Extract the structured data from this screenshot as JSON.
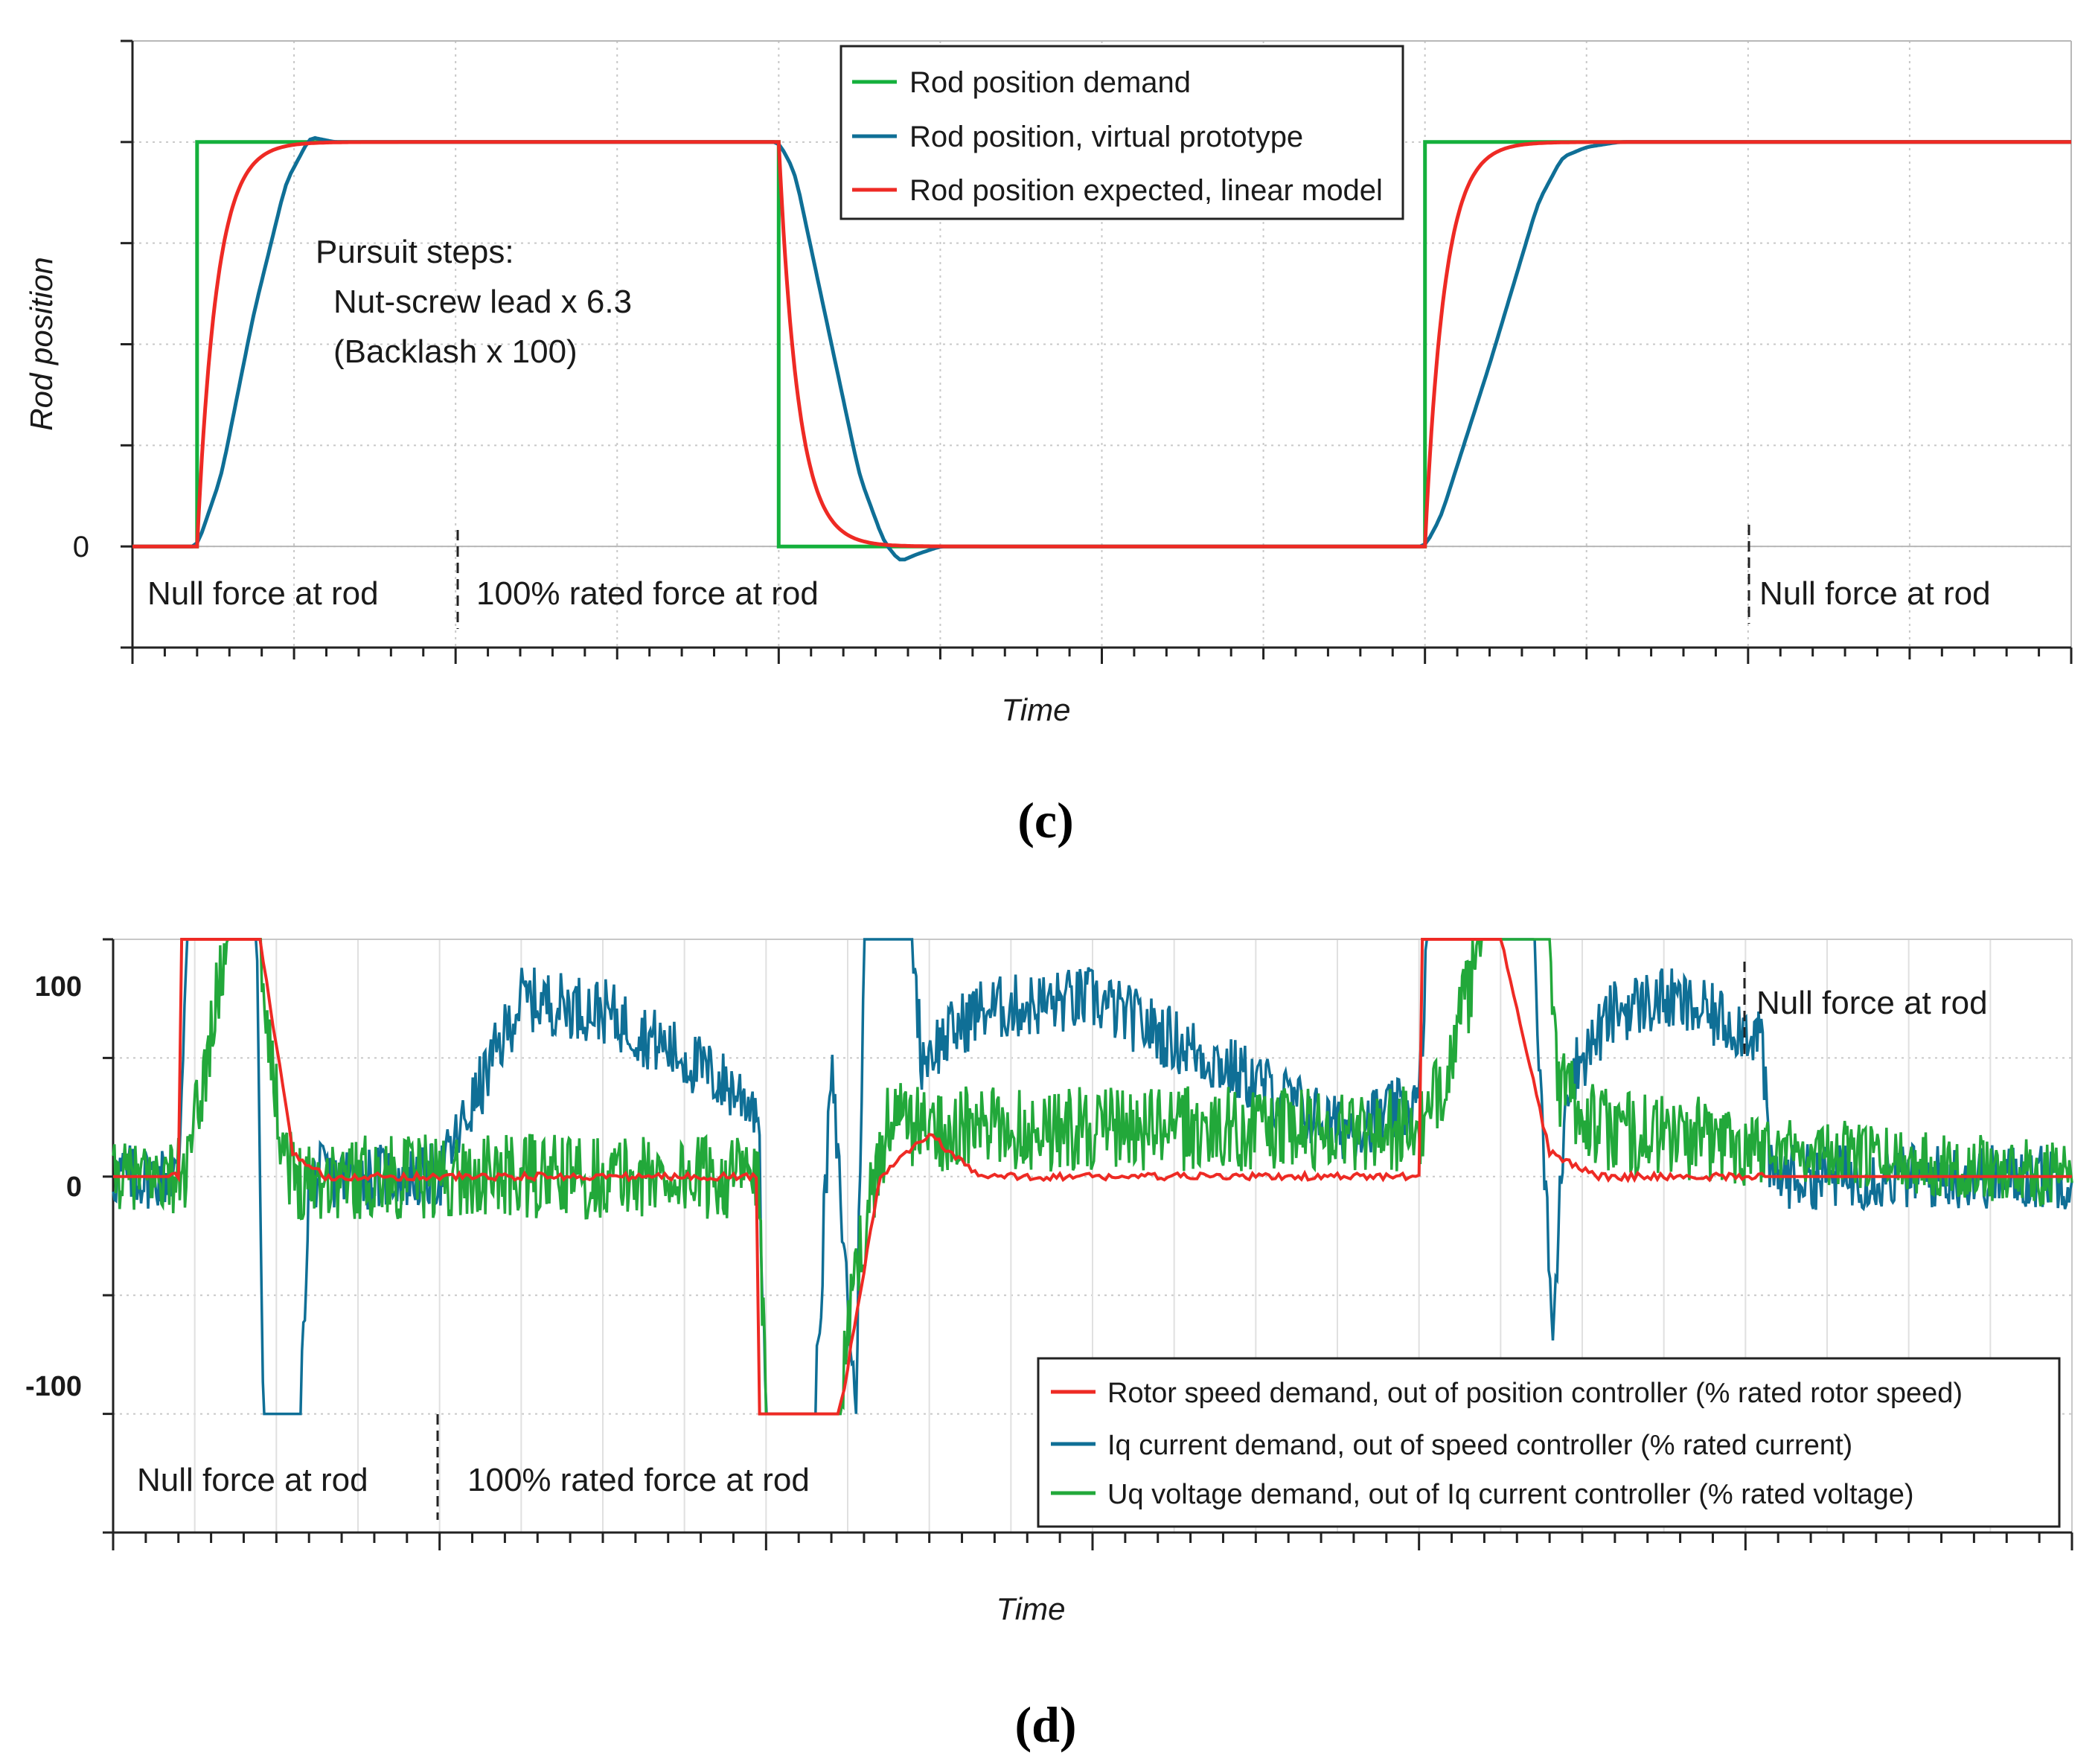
{
  "colors": {
    "demand": "#14b03c",
    "virtual": "#0f6f96",
    "linear": "#ee2a24",
    "uq": "#22a83a",
    "iq": "#0f6f96",
    "speed": "#ee2a24",
    "grid": "#c8c8c8",
    "axis": "#222222"
  },
  "chart_data": [
    {
      "type": "line",
      "caption": "(c)",
      "xlabel": "Time",
      "ylabel": "Rod position",
      "xlim": [
        0,
        12
      ],
      "ylim": [
        -1,
        5
      ],
      "y_tick_labels": [
        {
          "value": 0,
          "label": "0"
        }
      ],
      "legend": [
        "Rod position demand",
        "Rod position, virtual prototype",
        "Rod position expected, linear model"
      ],
      "legend_position": "top-center",
      "series": [
        {
          "name": "Rod position demand",
          "x": [
            0,
            0.4,
            0.4,
            4,
            4,
            8,
            8,
            12
          ],
          "y": [
            0,
            0,
            4,
            4,
            0,
            0,
            4,
            4
          ]
        },
        {
          "name": "Rod position, virtual prototype",
          "x": [
            0,
            0.4,
            0.55,
            0.75,
            0.95,
            1.1,
            1.25,
            1.45,
            4.0,
            4.1,
            4.3,
            4.5,
            4.65,
            4.75,
            4.85,
            5.0,
            5.3,
            8.0,
            8.1,
            8.4,
            8.7,
            8.85,
            9.0,
            9.2,
            9.5,
            10.0,
            12
          ],
          "y": [
            0,
            0,
            0.7,
            2.3,
            3.6,
            4.05,
            4.0,
            4.0,
            4.0,
            3.7,
            2.2,
            0.7,
            0.05,
            -0.15,
            -0.08,
            0,
            0,
            0,
            0.3,
            1.8,
            3.4,
            3.85,
            3.95,
            4.0,
            4.0,
            4.0,
            4.0
          ]
        },
        {
          "name": "Rod position expected, linear model",
          "tau": 0.12,
          "steps_at": [
            0.4,
            4.0,
            8.0
          ],
          "levels": [
            4,
            0,
            4
          ]
        }
      ],
      "annotations": [
        "Pursuit steps:",
        "Nut-screw lead x 6.3",
        "(Backlash x 100)"
      ],
      "regions": [
        "Null force at rod",
        "100% rated force at rod",
        "Null force at rod"
      ],
      "region_boundaries_x": [
        2,
        10
      ]
    },
    {
      "type": "line",
      "caption": "(d)",
      "xlabel": "Time",
      "xlim": [
        0,
        12
      ],
      "ylim": [
        -150,
        100
      ],
      "y_tick_labels": [
        {
          "value": 100,
          "label": "100"
        },
        {
          "value": 0,
          "label": "0"
        },
        {
          "value": -100,
          "label": "-100"
        }
      ],
      "legend": [
        "Rotor speed demand, out of position controller (% rated rotor speed)",
        "Iq current demand, out of speed controller (% rated current)",
        "Uq voltage demand, out of Iq current controller (% rated voltage)"
      ],
      "legend_position": "bottom-right",
      "series": [
        {
          "name": "Rotor speed demand, out of position controller (% rated rotor speed)",
          "x": [
            0,
            0.4,
            0.4,
            0.9,
            1.1,
            1.3,
            3.95,
            3.95,
            4.45,
            4.7,
            5.0,
            5.3,
            8.0,
            8.0,
            8.5,
            8.8,
            9.1,
            12
          ],
          "y": [
            0,
            0,
            100,
            100,
            10,
            0,
            0,
            -100,
            -100,
            0,
            18,
            0,
            0,
            100,
            100,
            10,
            0,
            0
          ]
        },
        {
          "name": "Iq current demand, out of speed controller (% rated current)",
          "x": [
            0,
            0.4,
            0.45,
            0.88,
            0.92,
            1.15,
            1.2,
            1.5,
            2.0,
            2.5,
            3.0,
            3.5,
            3.95,
            4.0,
            4.3,
            4.4,
            4.55,
            4.6,
            4.9,
            4.95,
            5.3,
            6.0,
            7.0,
            7.5,
            8.0,
            8.05,
            8.5,
            8.7,
            8.82,
            8.9,
            9.2,
            9.5,
            10.1,
            10.15,
            12
          ],
          "y": [
            0,
            0,
            100,
            100,
            -100,
            -100,
            0,
            0,
            0,
            75,
            70,
            50,
            30,
            -100,
            -100,
            45,
            -100,
            100,
            100,
            50,
            70,
            75,
            40,
            20,
            30,
            100,
            100,
            100,
            -70,
            40,
            70,
            75,
            60,
            0,
            0
          ]
        },
        {
          "name": "Uq voltage demand, out of Iq current controller (% rated voltage)",
          "x": [
            0,
            0.4,
            0.45,
            0.7,
            0.88,
            0.9,
            1.0,
            1.1,
            1.3,
            3.95,
            4.0,
            4.45,
            4.55,
            4.75,
            5.0,
            8.0,
            8.05,
            8.4,
            8.5,
            8.8,
            8.85,
            9.1,
            12
          ],
          "y": [
            0,
            0,
            0,
            100,
            100,
            100,
            30,
            0,
            0,
            0,
            -100,
            -100,
            -40,
            25,
            20,
            20,
            20,
            100,
            100,
            100,
            40,
            20,
            0
          ]
        }
      ],
      "regions": [
        "Null force at rod",
        "100% rated force at rod",
        "Null force at rod"
      ],
      "region_boundaries_x": [
        2,
        10
      ]
    }
  ]
}
